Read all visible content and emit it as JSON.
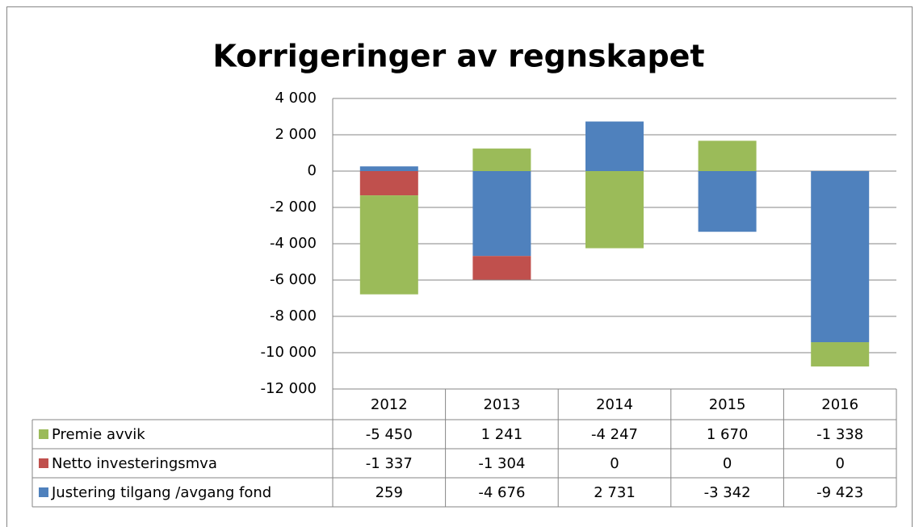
{
  "chart_data": {
    "type": "stacked_bar",
    "title": "Korrigeringer av regnskapet",
    "categories": [
      "2012",
      "2013",
      "2014",
      "2015",
      "2016"
    ],
    "series": [
      {
        "name": "Premie avvik",
        "color": "#9bbb59",
        "values": [
          -5450,
          1241,
          -4247,
          1670,
          -1338
        ],
        "value_labels": [
          "-5 450",
          "1 241",
          "-4 247",
          "1 670",
          "-1 338"
        ]
      },
      {
        "name": "Netto investeringsmva",
        "color": "#c0504d",
        "values": [
          -1337,
          -1304,
          0,
          0,
          0
        ],
        "value_labels": [
          "-1 337",
          "-1 304",
          "0",
          "0",
          "0"
        ]
      },
      {
        "name": "Justering tilgang /avgang fond",
        "color": "#4f81bd",
        "values": [
          259,
          -4676,
          2731,
          -3342,
          -9423
        ],
        "value_labels": [
          "259",
          "-4 676",
          "2 731",
          "-3 342",
          "-9 423"
        ]
      }
    ],
    "ylim": [
      -12000,
      4000
    ],
    "yticks": [
      {
        "value": -12000,
        "label": "-12 000"
      },
      {
        "value": -10000,
        "label": "-10 000"
      },
      {
        "value": -8000,
        "label": "-8 000"
      },
      {
        "value": -6000,
        "label": "-6 000"
      },
      {
        "value": -4000,
        "label": "-4 000"
      },
      {
        "value": -2000,
        "label": "-2 000"
      },
      0,
      {
        "value": 2000,
        "label": "2 000"
      },
      {
        "value": 4000,
        "label": "4 000"
      }
    ],
    "grid": true,
    "legend": "table"
  }
}
